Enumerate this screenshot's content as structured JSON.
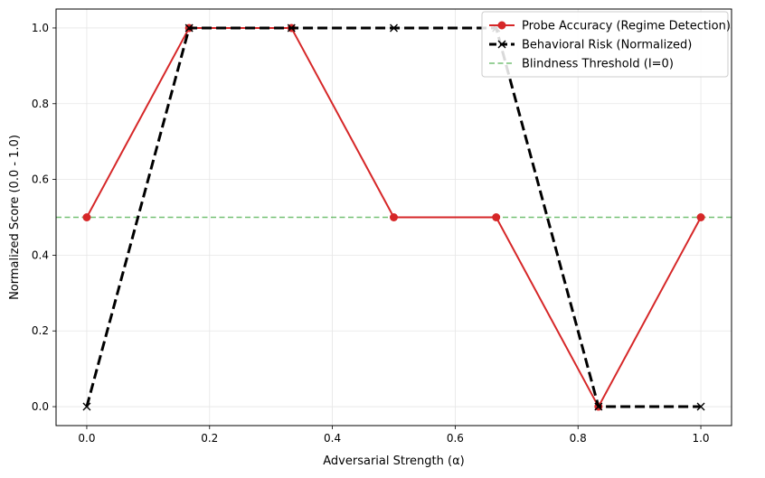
{
  "chart_data": {
    "type": "line",
    "title": "",
    "xlabel": "Adversarial Strength (α)",
    "ylabel": "Normalized Score (0.0 - 1.0)",
    "xlim": [
      -0.05,
      1.05
    ],
    "ylim": [
      -0.05,
      1.05
    ],
    "xticks": [
      0.0,
      0.2,
      0.4,
      0.6,
      0.8,
      1.0
    ],
    "xtick_labels": [
      "0.0",
      "0.2",
      "0.4",
      "0.6",
      "0.8",
      "1.0"
    ],
    "yticks": [
      0.0,
      0.2,
      0.4,
      0.6,
      0.8,
      1.0
    ],
    "ytick_labels": [
      "0.0",
      "0.2",
      "0.4",
      "0.6",
      "0.8",
      "1.0"
    ],
    "grid": true,
    "legend_position": "top-right",
    "x": [
      0.0,
      0.1667,
      0.3333,
      0.5,
      0.6667,
      0.8333,
      1.0
    ],
    "series": [
      {
        "name": "Probe Accuracy (Regime Detection)",
        "values": [
          0.5,
          1.0,
          1.0,
          0.5,
          0.5,
          0.0,
          0.5
        ],
        "color": "#d62728",
        "style": "solid",
        "marker": "circle"
      },
      {
        "name": "Behavioral Risk (Normalized)",
        "values": [
          0.0,
          1.0,
          1.0,
          1.0,
          1.0,
          0.0,
          0.0
        ],
        "color": "#000000",
        "style": "dashed",
        "marker": "x"
      }
    ],
    "reference_lines": [
      {
        "name": "Blindness Threshold (I=0)",
        "y": 0.5,
        "color": "#2ca02c",
        "style": "dashed"
      }
    ]
  }
}
